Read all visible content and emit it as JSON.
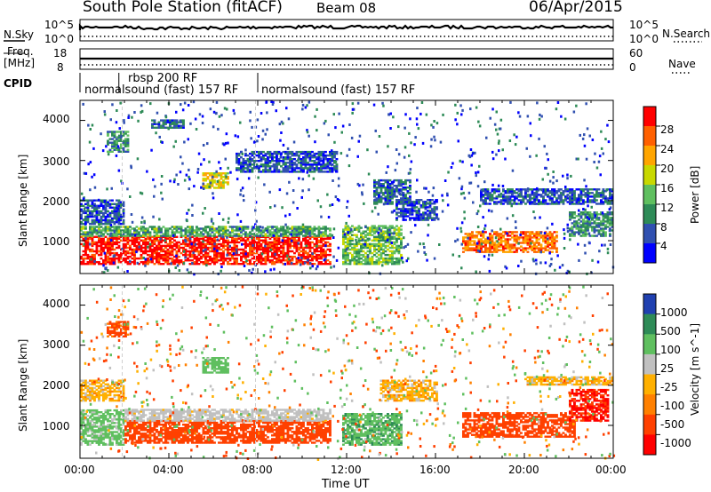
{
  "header": {
    "station": "South Pole Station (fitACF)",
    "beam": "Beam 08",
    "date": "06/Apr/2015"
  },
  "nsky_panel": {
    "label": "N.Sky",
    "left_ticks": [
      "10^5",
      "10^0"
    ],
    "right_label": "N.Search",
    "right_ticks": [
      "10^5",
      "10^0"
    ]
  },
  "freq_panel": {
    "label_line1": "Freq.",
    "label_line2": "[MHz]",
    "left_ticks": [
      "18",
      "8"
    ],
    "right_label": "Nave",
    "right_ticks": [
      "60",
      "0"
    ]
  },
  "cpid": {
    "label": "CPID",
    "segments": [
      {
        "name": "normalsound (fast) 157 RF",
        "start_hour": 0,
        "end_hour": 1.75
      },
      {
        "name": "rbsp 200 RF",
        "start_hour": 1.75,
        "end_hour": 8.0
      },
      {
        "name": "normalsound (fast) 157 RF",
        "start_hour": 8.0,
        "end_hour": 24
      }
    ],
    "labels": [
      "rbsp 200 RF",
      "normalsound (fast) 157 RF",
      "normalsound (fast) 157 RF"
    ]
  },
  "chart_data": [
    {
      "type": "heatmap",
      "name": "power",
      "ylabel": "Slant Range [km]",
      "xlabel": "",
      "xlim": [
        0,
        24
      ],
      "ylim": [
        180,
        4500
      ],
      "yticks": [
        1000,
        2000,
        3000,
        4000
      ],
      "colorbar": {
        "label": "Power [dB]",
        "ticks": [
          "4",
          "8",
          "12",
          "16",
          "20",
          "24",
          "28"
        ],
        "colors": [
          "#0000ff",
          "#3050b0",
          "#2e8b57",
          "#5fbf5f",
          "#c8d800",
          "#ffa500",
          "#ff6000",
          "#ff0000"
        ]
      },
      "regions": [
        {
          "t": [
            0.0,
            11.2
          ],
          "r": [
            400,
            1100
          ],
          "v": 30
        },
        {
          "t": [
            0.0,
            11.2
          ],
          "r": [
            1100,
            1350
          ],
          "v": 12
        },
        {
          "t": [
            0.0,
            2.0
          ],
          "r": [
            1400,
            2000
          ],
          "v": 6
        },
        {
          "t": [
            1.2,
            2.2
          ],
          "r": [
            3200,
            3700
          ],
          "v": 10
        },
        {
          "t": [
            3.2,
            4.6
          ],
          "r": [
            3800,
            4000
          ],
          "v": 7
        },
        {
          "t": [
            5.5,
            6.6
          ],
          "r": [
            2300,
            2700
          ],
          "v": 19
        },
        {
          "t": [
            7.0,
            11.5
          ],
          "r": [
            2700,
            3200
          ],
          "v": 6
        },
        {
          "t": [
            11.8,
            14.4
          ],
          "r": [
            400,
            1350
          ],
          "v": 14
        },
        {
          "t": [
            13.2,
            14.8
          ],
          "r": [
            1900,
            2500
          ],
          "v": 7
        },
        {
          "t": [
            14.2,
            16.0
          ],
          "r": [
            1500,
            2000
          ],
          "v": 6
        },
        {
          "t": [
            17.2,
            21.5
          ],
          "r": [
            700,
            1200
          ],
          "v": 25
        },
        {
          "t": [
            18.0,
            24.0
          ],
          "r": [
            1900,
            2300
          ],
          "v": 6
        },
        {
          "t": [
            22.0,
            24.0
          ],
          "r": [
            1100,
            1700
          ],
          "v": 10
        }
      ]
    },
    {
      "type": "heatmap",
      "name": "velocity",
      "ylabel": "Slant Range [km]",
      "xlabel": "Time UT",
      "xlim": [
        0,
        24
      ],
      "ylim": [
        180,
        4500
      ],
      "yticks": [
        1000,
        2000,
        3000,
        4000
      ],
      "xticks": [
        "00:00",
        "04:00",
        "08:00",
        "12:00",
        "16:00",
        "20:00",
        "00:00"
      ],
      "colorbar": {
        "label": "Velocity [m s^-1]",
        "ticks": [
          "1000",
          "500",
          "100",
          "25",
          "-25",
          "-100",
          "-500",
          "-1000"
        ],
        "colors": [
          "#2040b0",
          "#2e8b57",
          "#5fbf5f",
          "#c0c0c0",
          "#ffb000",
          "#ff8000",
          "#ff4000",
          "#ff0000"
        ]
      },
      "regions": [
        {
          "t": [
            0.0,
            2.0
          ],
          "r": [
            500,
            1400
          ],
          "v": 150
        },
        {
          "t": [
            2.0,
            11.2
          ],
          "r": [
            550,
            1100
          ],
          "v": -200
        },
        {
          "t": [
            2.0,
            11.2
          ],
          "r": [
            1100,
            1400
          ],
          "v": 60
        },
        {
          "t": [
            0.0,
            2.0
          ],
          "r": [
            1600,
            2100
          ],
          "v": 0
        },
        {
          "t": [
            1.2,
            2.2
          ],
          "r": [
            3200,
            3600
          ],
          "v": -120
        },
        {
          "t": [
            5.5,
            6.6
          ],
          "r": [
            2300,
            2700
          ],
          "v": 200
        },
        {
          "t": [
            11.8,
            14.4
          ],
          "r": [
            500,
            1300
          ],
          "v": 400
        },
        {
          "t": [
            13.5,
            16.0
          ],
          "r": [
            1600,
            2100
          ],
          "v": 0
        },
        {
          "t": [
            17.2,
            22.3
          ],
          "r": [
            700,
            1300
          ],
          "v": -250
        },
        {
          "t": [
            22.0,
            23.8
          ],
          "r": [
            1100,
            1900
          ],
          "v": -600
        },
        {
          "t": [
            20.0,
            24.0
          ],
          "r": [
            2000,
            2200
          ],
          "v": 0
        }
      ]
    }
  ]
}
